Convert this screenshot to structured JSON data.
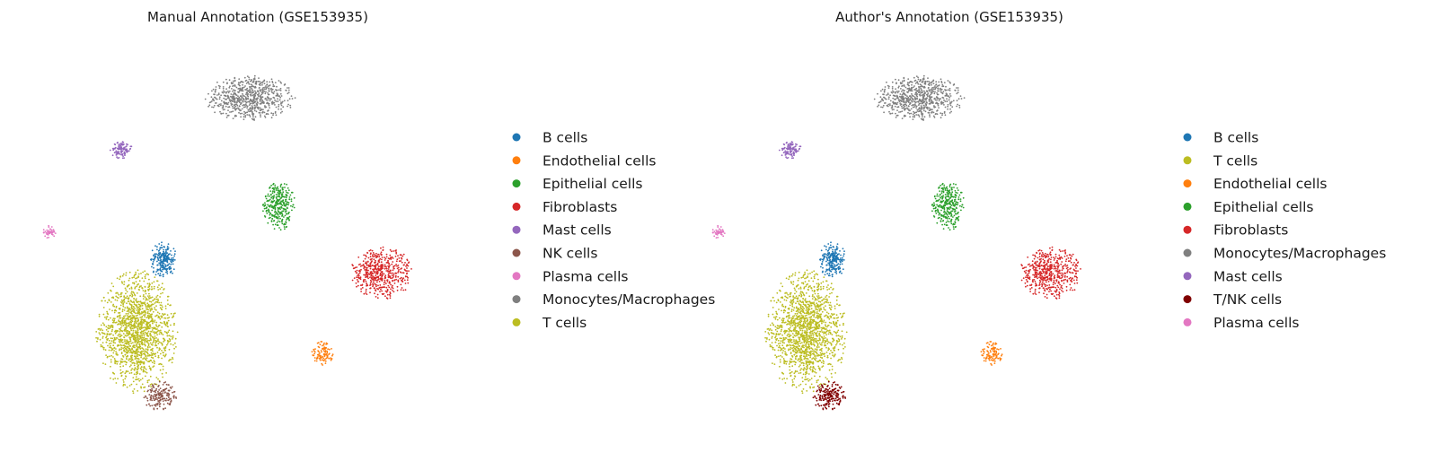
{
  "chart_data": [
    {
      "type": "scatter",
      "title": "Manual Annotation (GSE153935)",
      "xlabel": "",
      "ylabel": "",
      "xlim": [
        0,
        100
      ],
      "ylim": [
        0,
        100
      ],
      "grid": false,
      "axes_visible": false,
      "legend_position": "right",
      "legend": [
        {
          "label": "B cells",
          "color": "#1f77b4"
        },
        {
          "label": "Endothelial cells",
          "color": "#ff7f0e"
        },
        {
          "label": "Epithelial cells",
          "color": "#2ca02c"
        },
        {
          "label": "Fibroblasts",
          "color": "#d62728"
        },
        {
          "label": "Mast cells",
          "color": "#9467bd"
        },
        {
          "label": "NK cells",
          "color": "#8c564b"
        },
        {
          "label": "Plasma cells",
          "color": "#e377c2"
        },
        {
          "label": "Monocytes/Macrophages",
          "color": "#7f7f7f"
        },
        {
          "label": "T cells",
          "color": "#bcbd22"
        }
      ],
      "clusters": [
        {
          "label": "Monocytes/Macrophages",
          "color": "#7f7f7f",
          "cx": 48.6,
          "cy": 85.5,
          "sx": 9.5,
          "sy": 6.0,
          "n": 700
        },
        {
          "label": "Mast cells",
          "color": "#9467bd",
          "cx": 20.6,
          "cy": 71.5,
          "sx": 2.3,
          "sy": 2.5,
          "n": 120
        },
        {
          "label": "Epithelial cells",
          "color": "#2ca02c",
          "cx": 55.0,
          "cy": 56.5,
          "sx": 3.4,
          "sy": 6.8,
          "n": 320
        },
        {
          "label": "Plasma cells",
          "color": "#e377c2",
          "cx": 5.0,
          "cy": 49.0,
          "sx": 1.5,
          "sy": 1.8,
          "n": 50
        },
        {
          "label": "B cells",
          "color": "#1f77b4",
          "cx": 29.8,
          "cy": 41.5,
          "sx": 2.8,
          "sy": 4.8,
          "n": 240
        },
        {
          "label": "Fibroblasts",
          "color": "#d62728",
          "cx": 77.5,
          "cy": 38.0,
          "sx": 6.5,
          "sy": 6.8,
          "n": 520
        },
        {
          "label": "T cells",
          "color": "#bcbd22",
          "cx": 24.0,
          "cy": 22.0,
          "sx": 8.5,
          "sy": 16.0,
          "n": 1500
        },
        {
          "label": "Endothelial cells",
          "color": "#ff7f0e",
          "cx": 64.5,
          "cy": 16.0,
          "sx": 2.2,
          "sy": 3.2,
          "n": 110
        },
        {
          "label": "NK cells",
          "color": "#8c564b",
          "cx": 29.0,
          "cy": 4.5,
          "sx": 3.5,
          "sy": 4.0,
          "n": 170
        }
      ]
    },
    {
      "type": "scatter",
      "title": "Author's Annotation (GSE153935)",
      "xlabel": "",
      "ylabel": "",
      "xlim": [
        0,
        100
      ],
      "ylim": [
        0,
        100
      ],
      "grid": false,
      "axes_visible": false,
      "legend_position": "right",
      "legend": [
        {
          "label": "B cells",
          "color": "#1f77b4"
        },
        {
          "label": "T cells",
          "color": "#bcbd22"
        },
        {
          "label": "Endothelial cells",
          "color": "#ff7f0e"
        },
        {
          "label": "Epithelial cells",
          "color": "#2ca02c"
        },
        {
          "label": "Fibroblasts",
          "color": "#d62728"
        },
        {
          "label": "Monocytes/Macrophages",
          "color": "#7f7f7f"
        },
        {
          "label": "Mast cells",
          "color": "#9467bd"
        },
        {
          "label": "T/NK cells",
          "color": "#800000"
        },
        {
          "label": "Plasma cells",
          "color": "#e377c2"
        }
      ],
      "clusters": [
        {
          "label": "Monocytes/Macrophages",
          "color": "#7f7f7f",
          "cx": 48.6,
          "cy": 85.5,
          "sx": 9.5,
          "sy": 6.0,
          "n": 700
        },
        {
          "label": "Mast cells",
          "color": "#9467bd",
          "cx": 20.6,
          "cy": 71.5,
          "sx": 2.3,
          "sy": 2.5,
          "n": 120
        },
        {
          "label": "Epithelial cells",
          "color": "#2ca02c",
          "cx": 55.0,
          "cy": 56.5,
          "sx": 3.4,
          "sy": 6.8,
          "n": 320
        },
        {
          "label": "Plasma cells",
          "color": "#e377c2",
          "cx": 5.0,
          "cy": 49.0,
          "sx": 1.5,
          "sy": 1.8,
          "n": 50
        },
        {
          "label": "B cells",
          "color": "#1f77b4",
          "cx": 29.8,
          "cy": 41.5,
          "sx": 2.8,
          "sy": 4.8,
          "n": 240
        },
        {
          "label": "Fibroblasts",
          "color": "#d62728",
          "cx": 77.5,
          "cy": 38.0,
          "sx": 6.5,
          "sy": 6.8,
          "n": 520
        },
        {
          "label": "T cells",
          "color": "#bcbd22",
          "cx": 24.0,
          "cy": 22.0,
          "sx": 8.5,
          "sy": 16.0,
          "n": 1500
        },
        {
          "label": "Endothelial cells",
          "color": "#ff7f0e",
          "cx": 64.5,
          "cy": 16.0,
          "sx": 2.2,
          "sy": 3.2,
          "n": 110
        },
        {
          "label": "T/NK cells",
          "color": "#800000",
          "cx": 29.0,
          "cy": 4.5,
          "sx": 3.5,
          "sy": 4.0,
          "n": 190
        }
      ]
    }
  ]
}
